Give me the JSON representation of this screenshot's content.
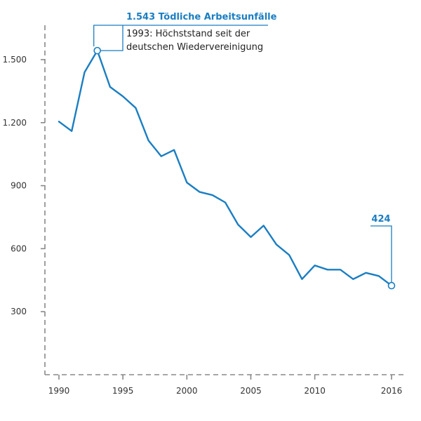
{
  "chart_data": {
    "type": "line",
    "title": "",
    "xlabel": "",
    "ylabel": "",
    "xlim": [
      1990,
      2016
    ],
    "ylim": [
      0,
      1600
    ],
    "grid": false,
    "x_ticks": [
      1990,
      1995,
      2000,
      2005,
      2010,
      2016
    ],
    "x_tick_labels": [
      "1990",
      "1995",
      "2000",
      "2005",
      "2010",
      "2016"
    ],
    "y_ticks": [
      300,
      600,
      900,
      1200,
      1500
    ],
    "y_tick_labels": [
      "300",
      "600",
      "900",
      "1.200",
      "1.500"
    ],
    "series": [
      {
        "x": [
          1990,
          1991,
          1992,
          1993,
          1994,
          1995,
          1996,
          1997,
          1998,
          1999,
          2000,
          2001,
          2002,
          2003,
          2004,
          2005,
          2006,
          2007,
          2008,
          2009,
          2010,
          2011,
          2012,
          2013,
          2014,
          2015,
          2016
        ],
        "values": [
          1205,
          1160,
          1440,
          1543,
          1370,
          1325,
          1270,
          1115,
          1040,
          1070,
          915,
          870,
          855,
          820,
          715,
          655,
          710,
          620,
          570,
          455,
          520,
          500,
          500,
          455,
          485,
          470,
          424
        ],
        "color": "#1a7ec2"
      }
    ],
    "annotations": [
      {
        "x": 1993,
        "y": 1543,
        "title": "1.543 Tödliche Arbeitsunfälle",
        "lines": [
          "1993: Höchststand seit der",
          "deutschen Wiedervereinigung"
        ]
      },
      {
        "x": 2016,
        "y": 424,
        "title": "424",
        "lines": []
      }
    ],
    "colors": {
      "line": "#1a7ec2",
      "axis": "#888888",
      "annotation_title": "#1a7ec2",
      "marker_fill": "#ffffff"
    }
  }
}
